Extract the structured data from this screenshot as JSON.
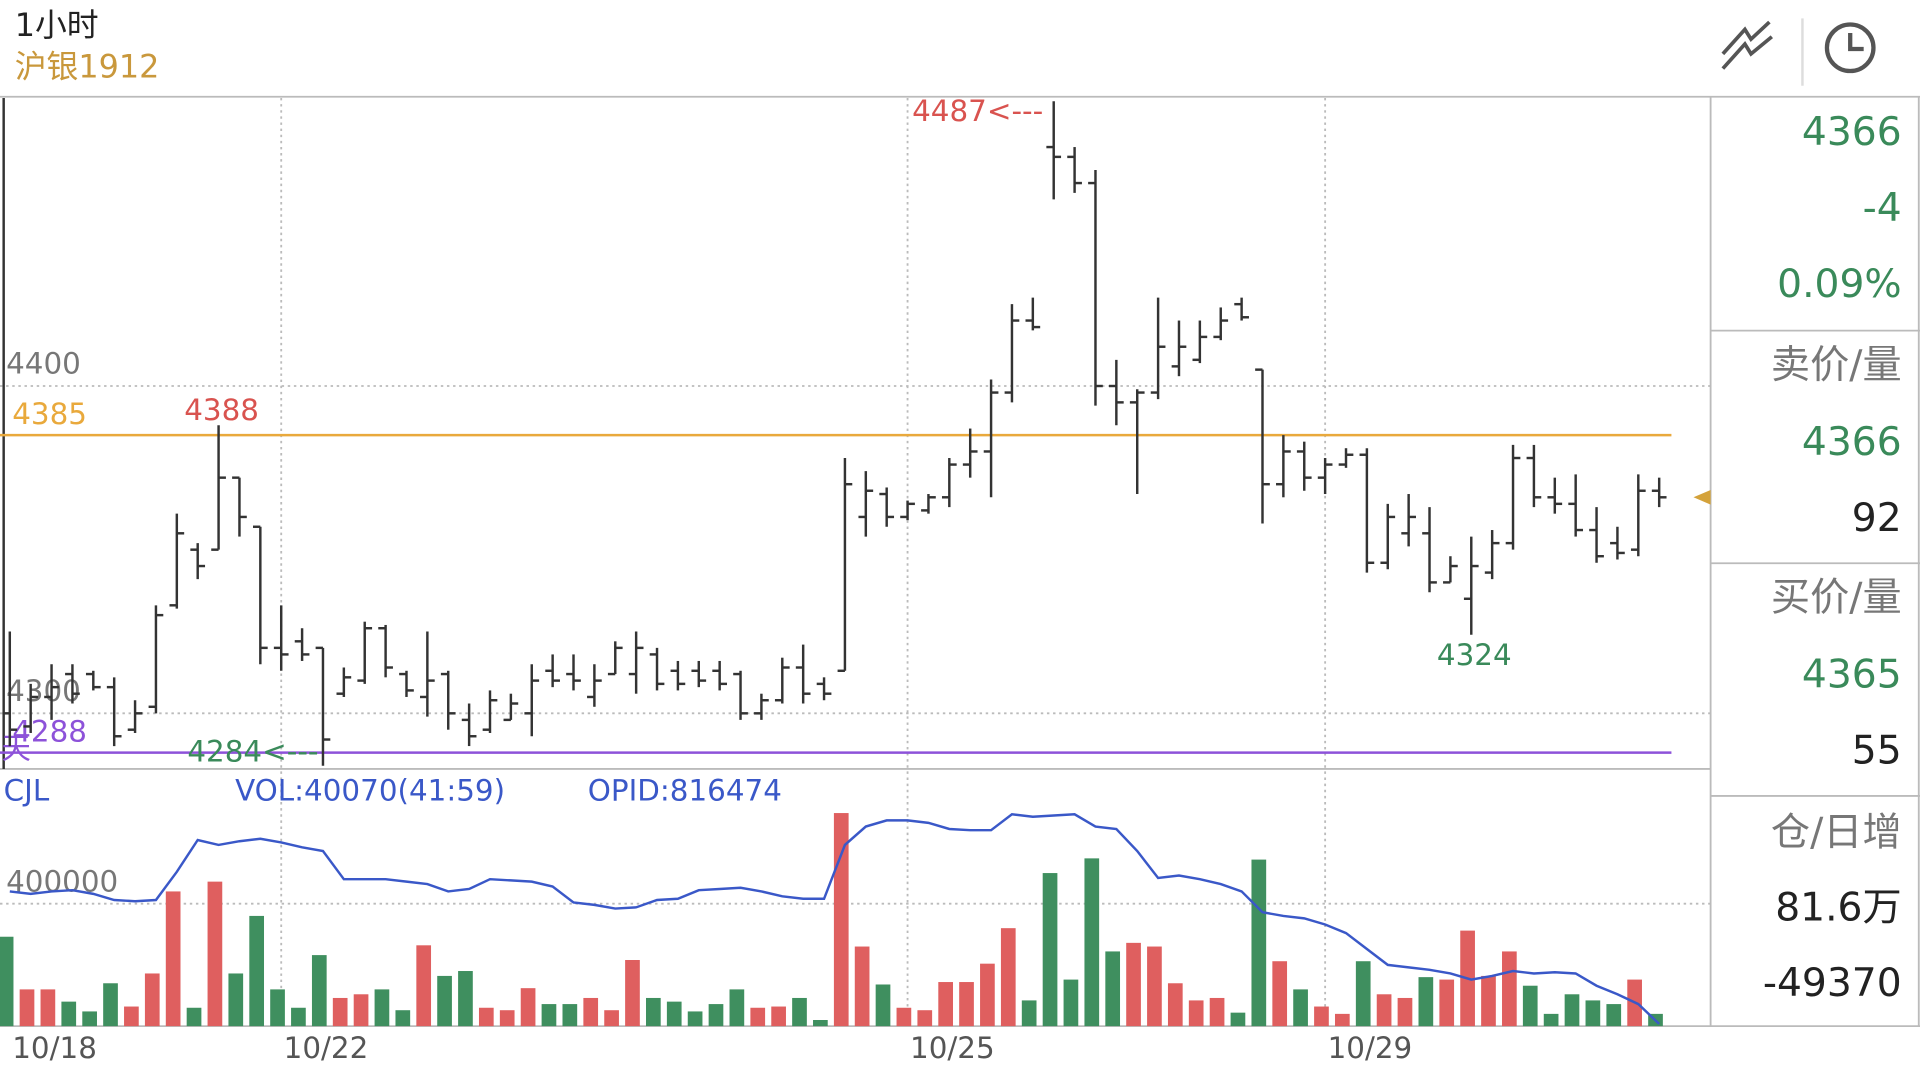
{
  "header": {
    "period": "1小时",
    "contract": "沪银1912"
  },
  "chart_data": [
    {
      "type": "ohlc",
      "categories": [
        "10/18",
        null,
        null,
        null,
        null,
        null,
        null,
        null,
        null,
        null,
        null,
        null,
        null,
        "10/22",
        null,
        null,
        null,
        null,
        null,
        null,
        null,
        null,
        null,
        null,
        null,
        null,
        null,
        null,
        null,
        null,
        null,
        null,
        null,
        null,
        null,
        null,
        null,
        null,
        null,
        null,
        null,
        null,
        null,
        "10/25",
        null,
        null,
        null,
        null,
        null,
        null,
        null,
        null,
        null,
        null,
        null,
        null,
        null,
        null,
        null,
        null,
        null,
        null,
        null,
        "10/29",
        null,
        null,
        null,
        null,
        null,
        null,
        null,
        null,
        null,
        null,
        null,
        null,
        null,
        null,
        null,
        null
      ],
      "open": [
        4300,
        4296,
        4305,
        4312,
        4312,
        4308,
        4295,
        4302,
        4333,
        4350,
        4350,
        4372,
        4357,
        4320,
        4322,
        4320,
        4306,
        4310,
        4326,
        4312,
        4305,
        4312,
        4298,
        4295,
        4298,
        4300,
        4313,
        4312,
        4305,
        4312,
        4312,
        4318,
        4313,
        4313,
        4313,
        4312,
        4300,
        4304,
        4314,
        4309,
        4313,
        4360,
        4367,
        4360,
        4362,
        4366,
        4376,
        4380,
        4398,
        4420,
        4473,
        4470,
        4462,
        4400,
        4395,
        4398,
        4406,
        4408,
        4415,
        4425,
        4405,
        4370,
        4380,
        4372,
        4376,
        4379,
        4346,
        4355,
        4355,
        4340,
        4335,
        4343,
        4352,
        4378,
        4366,
        4364,
        4356,
        4352,
        4350,
        4368
      ],
      "high": [
        4325,
        4309,
        4315,
        4315,
        4313,
        4311,
        4304,
        4333,
        4361,
        4352,
        4388,
        4372,
        4357,
        4333,
        4326,
        4320,
        4314,
        4328,
        4327,
        4313,
        4325,
        4313,
        4303,
        4307,
        4306,
        4315,
        4318,
        4318,
        4315,
        4322,
        4325,
        4320,
        4316,
        4316,
        4316,
        4313,
        4306,
        4317,
        4321,
        4311,
        4378,
        4374,
        4369,
        4365,
        4367,
        4378,
        4387,
        4402,
        4425,
        4427,
        4487,
        4473,
        4466,
        4408,
        4399,
        4427,
        4420,
        4420,
        4424,
        4427,
        4405,
        4385,
        4383,
        4378,
        4381,
        4381,
        4364,
        4367,
        4363,
        4348,
        4354,
        4356,
        4382,
        4382,
        4372,
        4373,
        4363,
        4357,
        4373,
        4372
      ],
      "low": [
        4290,
        4294,
        4298,
        4303,
        4307,
        4290,
        4294,
        4300,
        4332,
        4341,
        4350,
        4354,
        4315,
        4313,
        4316,
        4284,
        4305,
        4309,
        4311,
        4305,
        4299,
        4295,
        4290,
        4294,
        4298,
        4293,
        4308,
        4307,
        4302,
        4312,
        4306,
        4307,
        4307,
        4308,
        4307,
        4298,
        4298,
        4303,
        4303,
        4304,
        4313,
        4354,
        4357,
        4359,
        4361,
        4363,
        4372,
        4366,
        4395,
        4417,
        4457,
        4459,
        4394,
        4388,
        4367,
        4396,
        4403,
        4407,
        4414,
        4420,
        4358,
        4366,
        4368,
        4367,
        4375,
        4343,
        4344,
        4351,
        4337,
        4340,
        4324,
        4341,
        4350,
        4363,
        4361,
        4354,
        4346,
        4347,
        4348,
        4363
      ],
      "close": [
        4295,
        4305,
        4308,
        4306,
        4308,
        4293,
        4300,
        4330,
        4355,
        4345,
        4372,
        4360,
        4320,
        4318,
        4318,
        4292,
        4311,
        4326,
        4314,
        4307,
        4310,
        4300,
        4293,
        4304,
        4303,
        4310,
        4310,
        4310,
        4310,
        4320,
        4320,
        4309,
        4309,
        4310,
        4309,
        4300,
        4304,
        4314,
        4306,
        4306,
        4370,
        4368,
        4360,
        4364,
        4366,
        4376,
        4380,
        4398,
        4420,
        4418,
        4470,
        4462,
        4400,
        4395,
        4398,
        4412,
        4412,
        4415,
        4420,
        4421,
        4370,
        4380,
        4372,
        4376,
        4379,
        4346,
        4360,
        4360,
        4340,
        4345,
        4345,
        4352,
        4378,
        4366,
        4364,
        4356,
        4348,
        4349,
        4368,
        4366
      ],
      "color": "#333333",
      "ylim": [
        4283,
        4488
      ],
      "yticks": [
        4300,
        4400
      ],
      "grid": true,
      "hlines": [
        {
          "value": 4385,
          "color": "#e9a93c"
        },
        {
          "value": 4288,
          "color": "#8d52d9",
          "note": "8天"
        }
      ],
      "annotations": [
        "4487<---",
        "4388",
        "4284<---",
        "4324"
      ]
    },
    {
      "type": "bar",
      "legend": [
        "CJL",
        "VOL:40070(41:59)",
        "OPID:816474"
      ],
      "values": [
        292000,
        120000,
        120000,
        80000,
        48000,
        140000,
        64000,
        172000,
        440000,
        60000,
        472000,
        172000,
        360000,
        120000,
        60000,
        232000,
        92000,
        104000,
        120000,
        52000,
        264000,
        164000,
        180000,
        60000,
        52000,
        124000,
        72000,
        72000,
        92000,
        52000,
        216000,
        92000,
        80000,
        48000,
        72000,
        120000,
        60000,
        64000,
        92000,
        20000,
        696000,
        260000,
        136000,
        60000,
        52000,
        144000,
        144000,
        204000,
        320000,
        84000,
        500000,
        152000,
        548000,
        244000,
        272000,
        260000,
        140000,
        84000,
        92000,
        44000,
        544000,
        212000,
        120000,
        64000,
        40000,
        212000,
        104000,
        92000,
        160000,
        152000,
        312000,
        164000,
        244000,
        132000,
        40000,
        104000,
        84000,
        72000,
        152000,
        40000
      ],
      "up_color": "#df5f5f",
      "down_color": "#3f8f5f",
      "ylim": [
        0,
        832000
      ],
      "yticks": [
        400000
      ],
      "grid": true,
      "oi": {
        "color": "#3a58c8",
        "axis": "y2",
        "values": [
          844600,
          844080,
          844600,
          844860,
          844080,
          842780,
          842520,
          842780,
          848760,
          855520,
          854480,
          855260,
          855780,
          855000,
          853960,
          853180,
          847200,
          847200,
          847200,
          846680,
          846160,
          844600,
          845120,
          847200,
          846940,
          846680,
          845640,
          842260,
          841740,
          840960,
          841220,
          842780,
          843040,
          844860,
          845120,
          845380,
          844600,
          843560,
          843040,
          843040,
          854480,
          858380,
          859680,
          859680,
          859160,
          857860,
          857600,
          857600,
          860980,
          860460,
          860720,
          860980,
          858380,
          857860,
          853180,
          847460,
          847980,
          847200,
          846160,
          844600,
          840180,
          839400,
          838880,
          837580,
          835760,
          832380,
          829000,
          828480,
          827960,
          827180,
          825880,
          826660,
          827700,
          827180,
          827440,
          827180,
          824580,
          822760,
          820680,
          816474
        ]
      },
      "y2lim": [
        816000,
        870080
      ]
    }
  ],
  "quote": {
    "last": 4366,
    "change": -4,
    "change_pct": "0.09%",
    "ask_label": "卖价/量",
    "ask_price": 4366,
    "ask_volume": 92,
    "bid_label": "买价/量",
    "bid_price": 4365,
    "bid_volume": 55,
    "oi_label": "仓/日增",
    "oi": "81.6万",
    "oi_change": -49370
  }
}
